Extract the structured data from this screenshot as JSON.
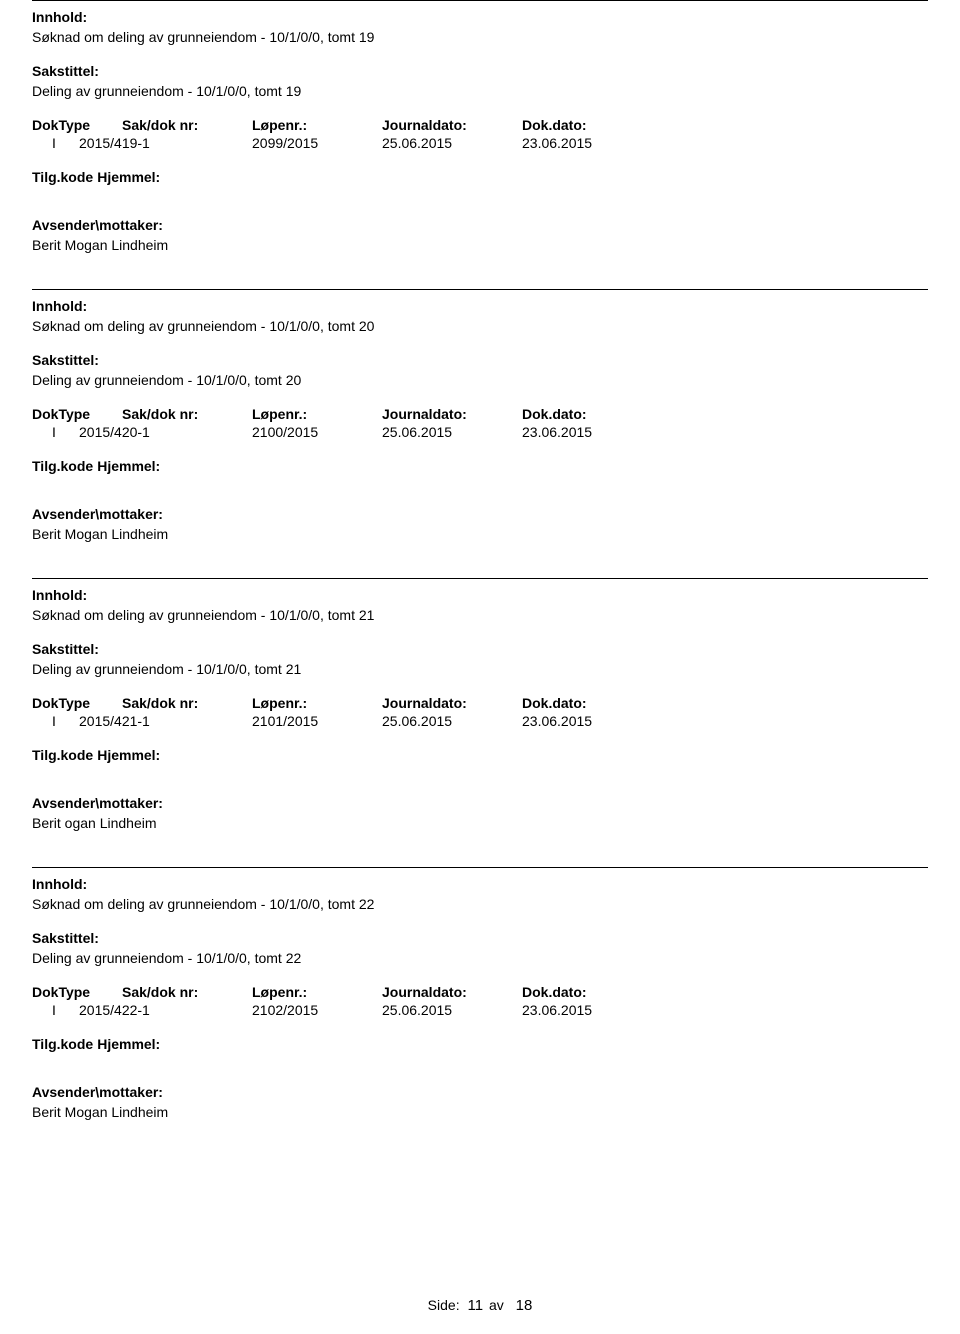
{
  "labels": {
    "innhold": "Innhold:",
    "sakstittel": "Sakstittel:",
    "doktype": "DokType",
    "sakdok": "Sak/dok nr:",
    "lopenr": "Løpenr.:",
    "journaldato": "Journaldato:",
    "dokdato": "Dok.dato:",
    "tilgkode": "Tilg.kode",
    "hjemmel": "Hjemmel:",
    "avsender": "Avsender\\mottaker:"
  },
  "entries": [
    {
      "innhold": "Søknad om deling av grunneiendom - 10/1/0/0, tomt 19",
      "sakstittel": "Deling av grunneiendom - 10/1/0/0, tomt 19",
      "doktype": "I",
      "sakdok": "2015/419-1",
      "lopenr": "2099/2015",
      "journaldato": "25.06.2015",
      "dokdato": "23.06.2015",
      "avsender": "Berit Mogan Lindheim"
    },
    {
      "innhold": "Søknad om deling av grunneiendom - 10/1/0/0, tomt 20",
      "sakstittel": "Deling av grunneiendom - 10/1/0/0, tomt 20",
      "doktype": "I",
      "sakdok": "2015/420-1",
      "lopenr": "2100/2015",
      "journaldato": "25.06.2015",
      "dokdato": "23.06.2015",
      "avsender": "Berit Mogan Lindheim"
    },
    {
      "innhold": "Søknad om deling av grunneiendom - 10/1/0/0, tomt 21",
      "sakstittel": "Deling av grunneiendom - 10/1/0/0, tomt 21",
      "doktype": "I",
      "sakdok": "2015/421-1",
      "lopenr": "2101/2015",
      "journaldato": "25.06.2015",
      "dokdato": "23.06.2015",
      "avsender": "Berit ogan Lindheim"
    },
    {
      "innhold": "Søknad om deling av grunneiendom - 10/1/0/0, tomt 22",
      "sakstittel": "Deling av grunneiendom - 10/1/0/0, tomt 22",
      "doktype": "I",
      "sakdok": "2015/422-1",
      "lopenr": "2102/2015",
      "journaldato": "25.06.2015",
      "dokdato": "23.06.2015",
      "avsender": "Berit Mogan Lindheim"
    }
  ],
  "footer": {
    "label": "Side:",
    "current": "11",
    "av": "av",
    "total": "18"
  }
}
